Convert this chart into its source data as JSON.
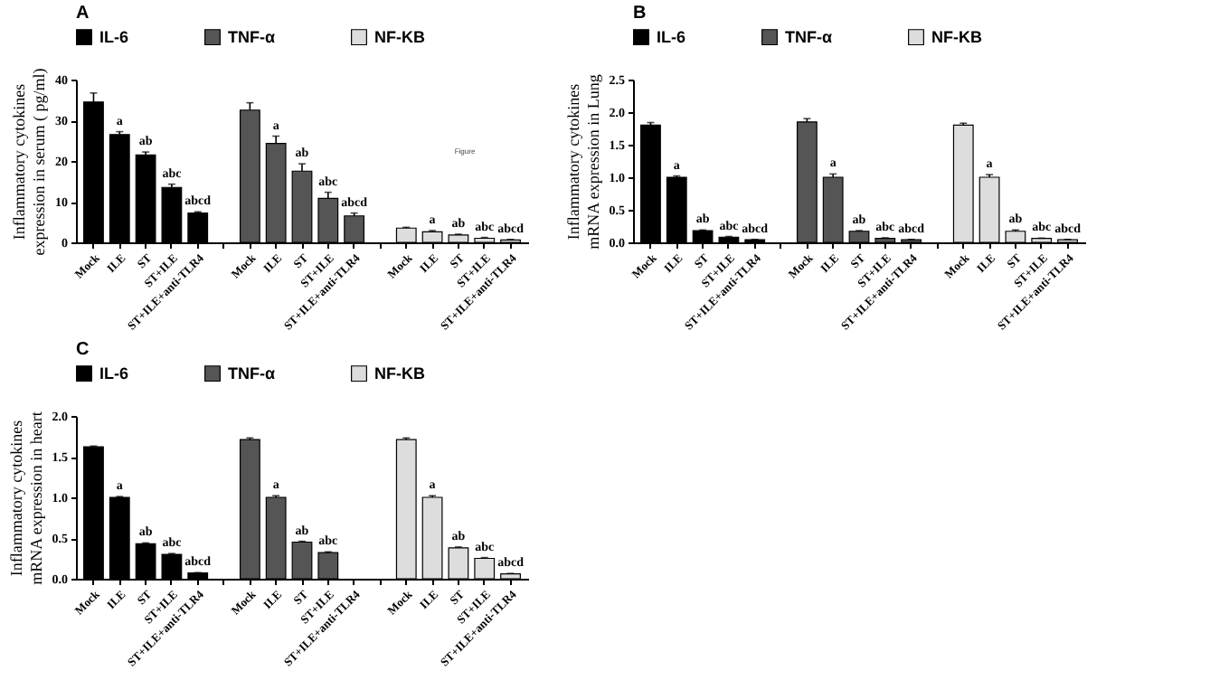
{
  "chart_data": [
    {
      "type": "bar",
      "title": "A",
      "ylabel": "Inflammatory cytokines expression in serum ( pg/ml)",
      "categories": [
        "Mock",
        "ILE",
        "ST",
        "ST+ILE",
        "ST+ILE+anti-TLR4",
        null,
        "Mock",
        "ILE",
        "ST",
        "ST+ILE",
        "ST+ILE+anti-TLR4",
        null,
        "Mock",
        "ILE",
        "ST",
        "ST+ILE",
        "ST+ILE+anti-TLR4"
      ],
      "ylim": [
        0,
        40
      ],
      "yticks": [
        0,
        10,
        20,
        30,
        40
      ],
      "legend": "top",
      "grid": false,
      "annotations": [
        "Figure"
      ],
      "series": [
        {
          "name": "IL-6",
          "color": "#000000",
          "values": [
            34.5,
            26.5,
            21.5,
            13.5,
            7.2,
            null,
            null,
            null,
            null,
            null,
            null,
            null,
            null,
            null,
            null,
            null,
            null
          ],
          "errors": [
            2.2,
            0.7,
            0.7,
            0.8,
            0.3,
            null,
            null,
            null,
            null,
            null,
            null,
            null,
            null,
            null,
            null,
            null,
            null
          ],
          "value_labels": [
            null,
            "a",
            "ab",
            "abc",
            "abcd",
            null,
            null,
            null,
            null,
            null,
            null,
            null,
            null,
            null,
            null,
            null,
            null
          ]
        },
        {
          "name": "TNF-α",
          "color": "#555555",
          "values": [
            null,
            null,
            null,
            null,
            null,
            null,
            32.5,
            24.3,
            17.5,
            10.8,
            6.5,
            null,
            null,
            null,
            null,
            null,
            null
          ],
          "errors": [
            null,
            null,
            null,
            null,
            null,
            null,
            1.8,
            1.8,
            1.8,
            1.5,
            0.7,
            null,
            null,
            null,
            null,
            null,
            null
          ],
          "value_labels": [
            null,
            null,
            null,
            null,
            null,
            null,
            null,
            "a",
            "ab",
            "abc",
            "abcd",
            null,
            null,
            null,
            null,
            null,
            null
          ]
        },
        {
          "name": "NF-KB",
          "color": "#dddddd",
          "values": [
            null,
            null,
            null,
            null,
            null,
            null,
            null,
            null,
            null,
            null,
            null,
            null,
            3.5,
            2.6,
            1.8,
            1.0,
            0.6
          ],
          "errors": [
            null,
            null,
            null,
            null,
            null,
            null,
            null,
            null,
            null,
            null,
            null,
            null,
            0.2,
            0.3,
            0.2,
            0.2,
            0.1
          ],
          "value_labels": [
            null,
            null,
            null,
            null,
            null,
            null,
            null,
            null,
            null,
            null,
            null,
            null,
            null,
            "a",
            "ab",
            "abc",
            "abcd"
          ]
        }
      ]
    },
    {
      "type": "bar",
      "title": "B",
      "ylabel": "Inflammatory cytokines mRNA expression in Lung",
      "categories": [
        "Mock",
        "ILE",
        "ST",
        "ST+ILE",
        "ST+ILE+anti-TLR4",
        null,
        "Mock",
        "ILE",
        "ST",
        "ST+ILE",
        "ST+ILE+anti-TLR4",
        null,
        "Mock",
        "ILE",
        "ST",
        "ST+ILE",
        "ST+ILE+anti-TLR4"
      ],
      "ylim": [
        0,
        2.5
      ],
      "yticks": [
        {
          "value": 0,
          "label": "0.0"
        },
        {
          "value": 0.5,
          "label": "0.5"
        },
        {
          "value": 1,
          "label": "1.0"
        },
        {
          "value": 1.5,
          "label": "1.5"
        },
        {
          "value": 2,
          "label": "2.0"
        },
        {
          "value": 2.5,
          "label": "2.5"
        }
      ],
      "legend": "top",
      "grid": false,
      "series": [
        {
          "name": "IL-6",
          "color": "#000000",
          "values": [
            1.8,
            1.0,
            0.18,
            0.08,
            0.04,
            null,
            null,
            null,
            null,
            null,
            null,
            null,
            null,
            null,
            null,
            null,
            null
          ],
          "errors": [
            0.04,
            0.02,
            0.01,
            0.01,
            0.005,
            null,
            null,
            null,
            null,
            null,
            null,
            null,
            null,
            null,
            null,
            null,
            null
          ],
          "value_labels": [
            null,
            "a",
            "ab",
            "abc",
            "abcd",
            null,
            null,
            null,
            null,
            null,
            null,
            null,
            null,
            null,
            null,
            null,
            null
          ]
        },
        {
          "name": "TNF-α",
          "color": "#555555",
          "values": [
            null,
            null,
            null,
            null,
            null,
            null,
            1.85,
            1.0,
            0.17,
            0.06,
            0.04,
            null,
            null,
            null,
            null,
            null,
            null
          ],
          "errors": [
            null,
            null,
            null,
            null,
            null,
            null,
            0.05,
            0.05,
            0.01,
            0.01,
            0.005,
            null,
            null,
            null,
            null,
            null,
            null
          ],
          "value_labels": [
            null,
            null,
            null,
            null,
            null,
            null,
            null,
            "a",
            "ab",
            "abc",
            "abcd",
            null,
            null,
            null,
            null,
            null,
            null
          ]
        },
        {
          "name": "NF-KB",
          "color": "#dddddd",
          "values": [
            null,
            null,
            null,
            null,
            null,
            null,
            null,
            null,
            null,
            null,
            null,
            null,
            1.8,
            1.0,
            0.17,
            0.06,
            0.04
          ],
          "errors": [
            null,
            null,
            null,
            null,
            null,
            null,
            null,
            null,
            null,
            null,
            null,
            null,
            0.03,
            0.04,
            0.02,
            0.005,
            0.005
          ],
          "value_labels": [
            null,
            null,
            null,
            null,
            null,
            null,
            null,
            null,
            null,
            null,
            null,
            null,
            null,
            "a",
            "ab",
            "abc",
            "abcd"
          ]
        }
      ]
    },
    {
      "type": "bar",
      "title": "C",
      "ylabel": "Inflammatory cytokines mRNA expression in heart",
      "categories": [
        "Mock",
        "ILE",
        "ST",
        "ST+ILE",
        "ST+ILE+anti-TLR4",
        null,
        "Mock",
        "ILE",
        "ST",
        "ST+ILE",
        "ST+ILE+anti-TLR4",
        null,
        "Mock",
        "ILE",
        "ST",
        "ST+ILE",
        "ST+ILE+anti-TLR4"
      ],
      "ylim": [
        0,
        2.0
      ],
      "yticks": [
        {
          "value": 0,
          "label": "0.0"
        },
        {
          "value": 0.5,
          "label": "0.5"
        },
        {
          "value": 1,
          "label": "1.0"
        },
        {
          "value": 1.5,
          "label": "1.5"
        },
        {
          "value": 2,
          "label": "2.0"
        }
      ],
      "legend": "top",
      "grid": false,
      "series": [
        {
          "name": "IL-6",
          "color": "#000000",
          "values": [
            1.62,
            1.0,
            0.43,
            0.3,
            0.07,
            null,
            null,
            null,
            null,
            null,
            null,
            null,
            null,
            null,
            null,
            null,
            null
          ],
          "errors": [
            0.01,
            0.01,
            0.01,
            0.01,
            0.005,
            null,
            null,
            null,
            null,
            null,
            null,
            null,
            null,
            null,
            null,
            null,
            null
          ],
          "value_labels": [
            null,
            "a",
            "ab",
            "abc",
            "abcd",
            null,
            null,
            null,
            null,
            null,
            null,
            null,
            null,
            null,
            null,
            null,
            null
          ]
        },
        {
          "name": "TNF-α",
          "color": "#555555",
          "values": [
            null,
            null,
            null,
            null,
            null,
            null,
            1.71,
            1.0,
            0.45,
            0.32,
            null,
            null,
            null,
            null,
            null,
            null,
            null
          ],
          "errors": [
            null,
            null,
            null,
            null,
            null,
            null,
            0.02,
            0.02,
            0.01,
            0.01,
            null,
            null,
            null,
            null,
            null,
            null,
            null
          ],
          "value_labels": [
            null,
            null,
            null,
            null,
            null,
            null,
            null,
            "a",
            "ab",
            "abc",
            null,
            null,
            null,
            null,
            null,
            null,
            null
          ]
        },
        {
          "name": "NF-KB",
          "color": "#dddddd",
          "values": [
            null,
            null,
            null,
            null,
            null,
            null,
            null,
            null,
            null,
            null,
            null,
            null,
            1.71,
            1.0,
            0.38,
            0.25,
            0.06
          ],
          "errors": [
            null,
            null,
            null,
            null,
            null,
            null,
            null,
            null,
            null,
            null,
            null,
            null,
            0.02,
            0.02,
            0.01,
            0.01,
            0.005
          ],
          "value_labels": [
            null,
            null,
            null,
            null,
            null,
            null,
            null,
            null,
            null,
            null,
            null,
            null,
            null,
            "a",
            "ab",
            "abc",
            "abcd"
          ]
        }
      ]
    }
  ]
}
